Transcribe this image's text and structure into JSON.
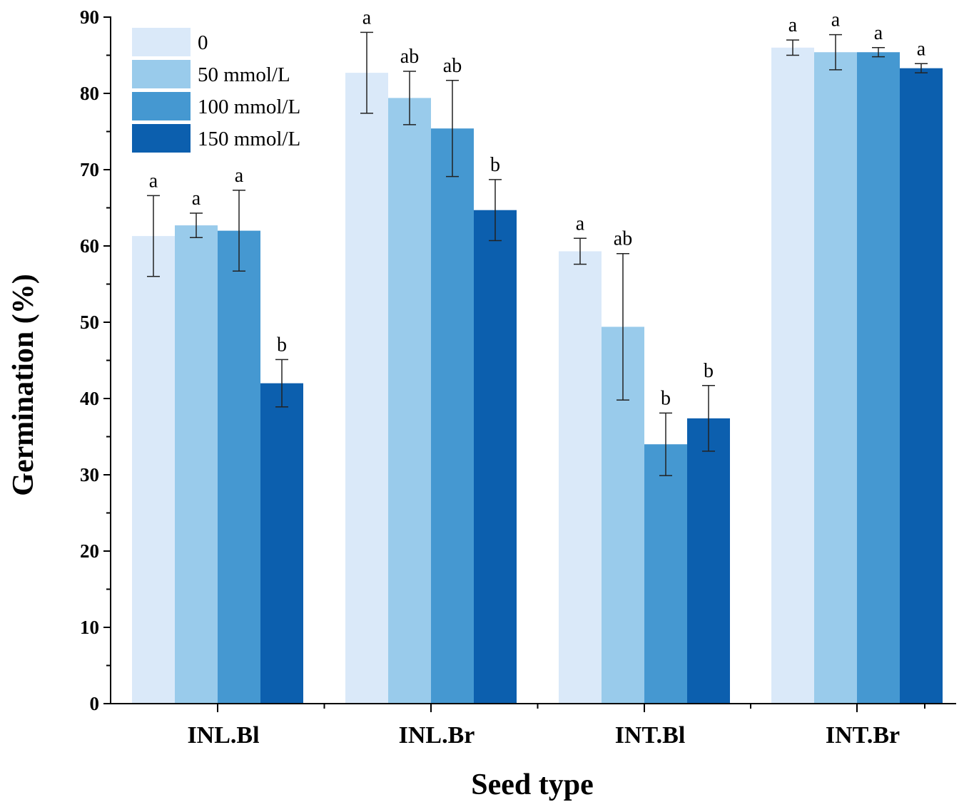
{
  "chart_data": {
    "type": "bar",
    "title": "",
    "xlabel": "Seed type",
    "ylabel": "Germination (%)",
    "ylim": [
      0,
      90
    ],
    "yticks": [
      0,
      10,
      20,
      30,
      40,
      50,
      60,
      70,
      80,
      90
    ],
    "grid": false,
    "legend_position": "top-left",
    "categories": [
      "INL.Bl",
      "INL.Br",
      "INT.Bl",
      "INT.Br"
    ],
    "series": [
      {
        "name": "0",
        "color": "#dae9f9",
        "values": [
          61.3,
          82.7,
          59.3,
          86.0
        ],
        "errors": [
          5.3,
          5.3,
          1.7,
          1.0
        ],
        "letters": [
          "a",
          "a",
          "a",
          "a"
        ]
      },
      {
        "name": "50 mmol/L",
        "color": "#99cbeb",
        "values": [
          62.7,
          79.4,
          49.4,
          85.4
        ],
        "errors": [
          1.6,
          3.5,
          9.6,
          2.3
        ],
        "letters": [
          "a",
          "ab",
          "ab",
          "a"
        ]
      },
      {
        "name": "100 mmol/L",
        "color": "#4598d1",
        "values": [
          62.0,
          75.4,
          34.0,
          85.4
        ],
        "errors": [
          5.3,
          6.3,
          4.1,
          0.6
        ],
        "letters": [
          "a",
          "ab",
          "b",
          "a"
        ]
      },
      {
        "name": "150 mmol/L",
        "color": "#0c5fae",
        "values": [
          42.0,
          64.7,
          37.4,
          83.3
        ],
        "errors": [
          3.1,
          4.0,
          4.3,
          0.6
        ],
        "letters": [
          "b",
          "b",
          "b",
          "a"
        ]
      }
    ]
  }
}
